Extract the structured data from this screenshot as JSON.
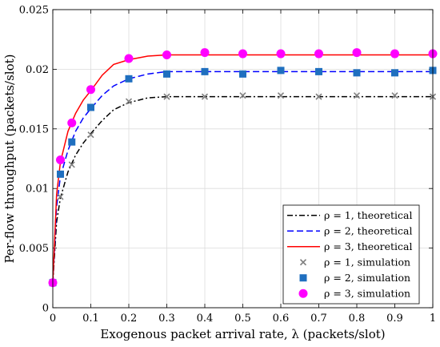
{
  "chart_data": {
    "type": "line",
    "xlabel": "Exogenous packet arrival rate, λ (packets/slot)",
    "ylabel": "Per-flow throughput (packets/slot)",
    "xlim": [
      0,
      1
    ],
    "ylim": [
      0,
      0.025
    ],
    "x_ticks": [
      "0",
      "0.1",
      "0.2",
      "0.3",
      "0.4",
      "0.5",
      "0.6",
      "0.7",
      "0.8",
      "0.9",
      "1"
    ],
    "y_ticks": [
      "0",
      "0.005",
      "0.01",
      "0.015",
      "0.02",
      "0.025"
    ],
    "grid": true,
    "legend_position": "bottom-right",
    "series": [
      {
        "name": "ρ = 1, theoretical",
        "kind": "line",
        "style": "dashdot",
        "color": "#000000",
        "x": [
          0,
          0.01,
          0.02,
          0.04,
          0.06,
          0.08,
          0.1,
          0.13,
          0.16,
          0.2,
          0.25,
          0.3,
          0.4,
          0.5,
          0.6,
          0.7,
          0.8,
          0.9,
          1.0
        ],
        "y": [
          0.0021,
          0.0072,
          0.0092,
          0.0114,
          0.0128,
          0.0138,
          0.0146,
          0.0157,
          0.0166,
          0.0172,
          0.0176,
          0.0177,
          0.0177,
          0.0177,
          0.0177,
          0.0177,
          0.0177,
          0.0177,
          0.0177
        ]
      },
      {
        "name": "ρ = 2, theoretical",
        "kind": "line",
        "style": "dashed",
        "color": "#0000ff",
        "x": [
          0,
          0.01,
          0.02,
          0.04,
          0.06,
          0.08,
          0.1,
          0.13,
          0.16,
          0.2,
          0.25,
          0.3,
          0.4,
          0.5,
          0.6,
          0.7,
          0.8,
          0.9,
          1.0
        ],
        "y": [
          0.0021,
          0.0085,
          0.011,
          0.0132,
          0.0148,
          0.0159,
          0.0167,
          0.0178,
          0.0186,
          0.0192,
          0.0196,
          0.0198,
          0.0198,
          0.0198,
          0.0198,
          0.0198,
          0.0198,
          0.0198,
          0.0198
        ]
      },
      {
        "name": "ρ = 3, theoretical",
        "kind": "line",
        "style": "solid",
        "color": "#ff0000",
        "x": [
          0,
          0.01,
          0.02,
          0.04,
          0.06,
          0.08,
          0.1,
          0.13,
          0.16,
          0.2,
          0.25,
          0.3,
          0.4,
          0.5,
          0.6,
          0.7,
          0.8,
          0.9,
          1.0
        ],
        "y": [
          0.0021,
          0.0095,
          0.0122,
          0.0148,
          0.0163,
          0.0174,
          0.0182,
          0.0195,
          0.0204,
          0.0208,
          0.0211,
          0.0212,
          0.0212,
          0.0212,
          0.0212,
          0.0212,
          0.0212,
          0.0212,
          0.0212
        ]
      },
      {
        "name": "ρ = 1, simulation",
        "kind": "marker",
        "marker": "x",
        "color": "#808080",
        "x": [
          0,
          0.02,
          0.05,
          0.1,
          0.2,
          0.3,
          0.4,
          0.5,
          0.6,
          0.7,
          0.8,
          0.9,
          1.0
        ],
        "y": [
          0.0021,
          0.0093,
          0.012,
          0.0145,
          0.0173,
          0.0177,
          0.0177,
          0.0178,
          0.0178,
          0.0177,
          0.0178,
          0.0178,
          0.0177
        ]
      },
      {
        "name": "ρ = 2, simulation",
        "kind": "marker",
        "marker": "square",
        "color": "#1f6fbf",
        "x": [
          0,
          0.02,
          0.05,
          0.1,
          0.2,
          0.3,
          0.4,
          0.5,
          0.6,
          0.7,
          0.8,
          0.9,
          1.0
        ],
        "y": [
          0.0021,
          0.0112,
          0.0139,
          0.0168,
          0.0192,
          0.0196,
          0.0198,
          0.0196,
          0.0199,
          0.0198,
          0.0197,
          0.0197,
          0.0199
        ]
      },
      {
        "name": "ρ = 3, simulation",
        "kind": "marker",
        "marker": "circle",
        "color": "#ff00ff",
        "x": [
          0,
          0.02,
          0.05,
          0.1,
          0.2,
          0.3,
          0.4,
          0.5,
          0.6,
          0.7,
          0.8,
          0.9,
          1.0
        ],
        "y": [
          0.0021,
          0.0124,
          0.0155,
          0.0183,
          0.0209,
          0.0212,
          0.0214,
          0.0213,
          0.0213,
          0.0213,
          0.0214,
          0.0213,
          0.0213
        ]
      }
    ]
  }
}
